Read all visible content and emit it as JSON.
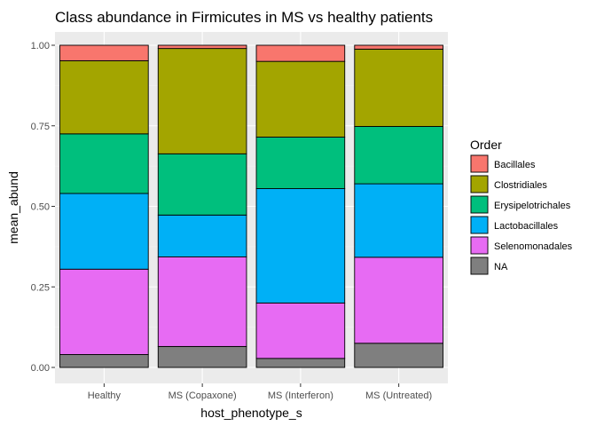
{
  "chart_data": {
    "type": "bar",
    "stacked": true,
    "title": "Class abundance in Firmicutes in MS vs healthy patients",
    "xlabel": "host_phenotype_s",
    "ylabel": "mean_abund",
    "ylim": [
      0,
      1
    ],
    "yticks": [
      "0.00",
      "0.25",
      "0.50",
      "0.75",
      "1.00"
    ],
    "grid": true,
    "legend": {
      "title": "Order",
      "placement": "right"
    },
    "categories": [
      "Healthy",
      "MS (Copaxone)",
      "MS (Interferon)",
      "MS (Untreated)"
    ],
    "series": [
      {
        "name": "NA",
        "color": "#7f7f7f",
        "values": [
          0.04,
          0.065,
          0.028,
          0.075
        ]
      },
      {
        "name": "Selenomonadales",
        "color": "#e76bf3",
        "values": [
          0.265,
          0.278,
          0.172,
          0.267
        ]
      },
      {
        "name": "Lactobacillales",
        "color": "#00b0f6",
        "values": [
          0.235,
          0.13,
          0.355,
          0.228
        ]
      },
      {
        "name": "Erysipelotrichales",
        "color": "#00bf7d",
        "values": [
          0.185,
          0.19,
          0.16,
          0.178
        ]
      },
      {
        "name": "Clostridiales",
        "color": "#a3a500",
        "values": [
          0.227,
          0.327,
          0.235,
          0.24
        ]
      },
      {
        "name": "Bacillales",
        "color": "#f8766d",
        "values": [
          0.048,
          0.01,
          0.05,
          0.012
        ]
      }
    ],
    "legend_order": [
      "Bacillales",
      "Clostridiales",
      "Erysipelotrichales",
      "Lactobacillales",
      "Selenomonadales",
      "NA"
    ]
  }
}
